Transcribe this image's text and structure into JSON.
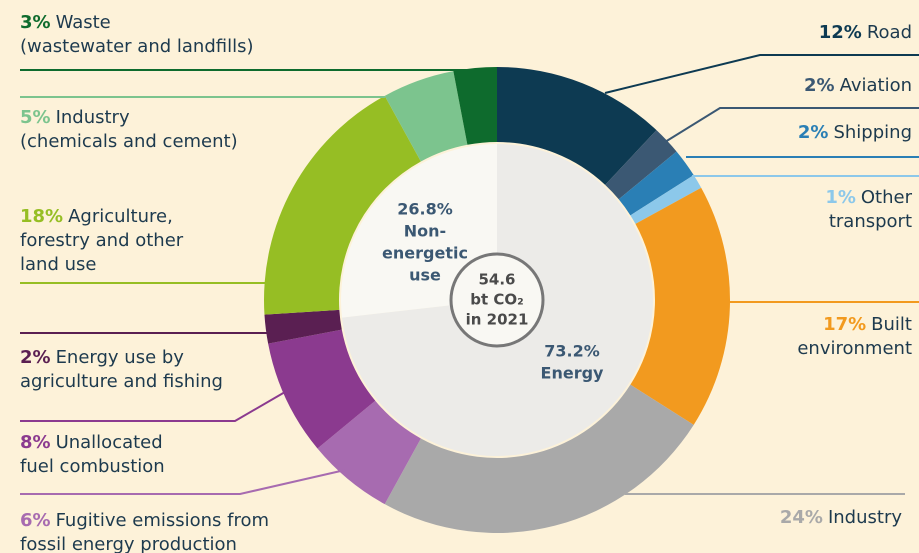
{
  "chart_data": {
    "type": "donut",
    "outer": {
      "names": [
        [
          "Road"
        ],
        [
          "Aviation"
        ],
        [
          "Shipping"
        ],
        [
          "Other",
          "transport"
        ],
        [
          "Built",
          "environment"
        ],
        [
          "Industry"
        ],
        [
          "Fugitive emissions from",
          "fossil energy production"
        ],
        [
          "Unallocated",
          "fuel combustion"
        ],
        [
          "Energy use by",
          "agriculture and fishing"
        ],
        [
          "Agriculture,",
          "forestry and other",
          "land use"
        ],
        [
          "Industry",
          "(chemicals and cement)"
        ],
        [
          "Waste",
          "(wastewater and landfills)"
        ]
      ],
      "values": [
        12,
        2,
        2,
        1,
        17,
        24,
        6,
        8,
        2,
        18,
        5,
        3
      ],
      "value_labels": [
        "12%",
        "2%",
        "2%",
        "1%",
        "17%",
        "24%",
        "6%",
        "8%",
        "2%",
        "18%",
        "5%",
        "3%"
      ],
      "colors": [
        "#0d3a52",
        "#3b5873",
        "#2a7fb5",
        "#8cc8ea",
        "#f29a1f",
        "#a9a9a9",
        "#a76bb0",
        "#8b3a8f",
        "#5a1f52",
        "#96be24",
        "#7cc48e",
        "#0e6b2d"
      ]
    },
    "inner": {
      "names": [
        [
          "Energy"
        ],
        [
          "Non-",
          "energetic",
          "use"
        ]
      ],
      "values": [
        73.2,
        26.8
      ],
      "value_labels": [
        "73.2%",
        "26.8%"
      ],
      "colors": [
        "#ecebe8",
        "#f9f8f3"
      ]
    },
    "center_label": [
      "54.6",
      "bt CO₂",
      "in 2021"
    ]
  }
}
